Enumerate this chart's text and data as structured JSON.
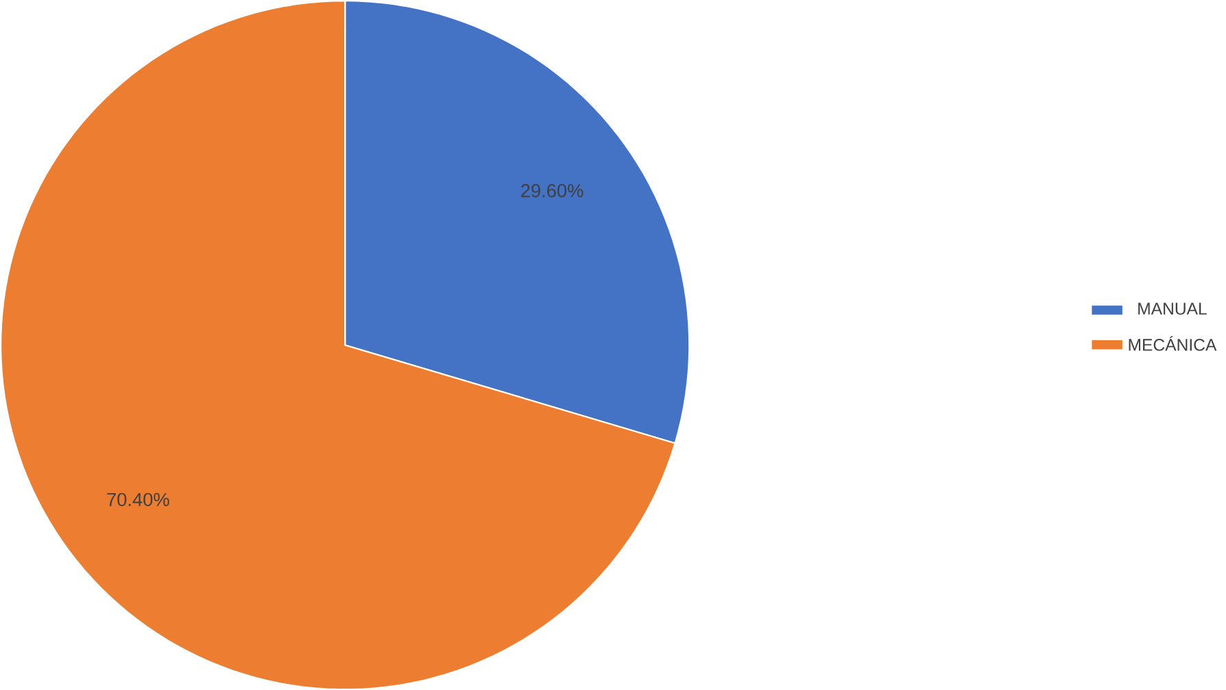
{
  "chart_data": {
    "type": "pie",
    "categories": [
      "MANUAL",
      "MECÁNICA"
    ],
    "values": [
      29.6,
      70.4
    ],
    "colors": [
      "#4472c4",
      "#ed7d31"
    ],
    "value_labels": [
      "29.60%",
      "70.40%"
    ],
    "legend": "right"
  }
}
